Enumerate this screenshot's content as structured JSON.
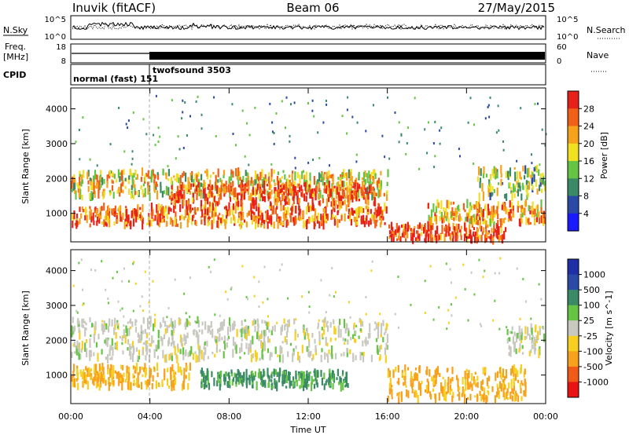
{
  "header": {
    "station": "Inuvik (fitACF)",
    "beam": "Beam 06",
    "date": "27/May/2015"
  },
  "panels": {
    "sky_label": "N.Sky",
    "sky_ticks": [
      "10^5",
      "10^0"
    ],
    "search_label": "N.Search",
    "search_ticks": [
      "10^5",
      "10^0"
    ],
    "freq_label": "Freq.",
    "freq_unit": "[MHz]",
    "freq_ticks": [
      "18",
      "8"
    ],
    "nave_label": "Nave",
    "nave_ticks": [
      "60",
      "0"
    ],
    "cpid_label": "CPID",
    "cpid_entries": [
      {
        "text": "normal (fast) 151",
        "start_hour": 0
      },
      {
        "text": "twofsound 3503",
        "start_hour": 4.0
      }
    ]
  },
  "colors": {
    "power_scale": [
      "#1a1aff",
      "#2a4aa8",
      "#3a8a66",
      "#66c444",
      "#f0e020",
      "#f6a21a",
      "#f26018",
      "#e8201a"
    ],
    "velocity_scale": [
      "#e81414",
      "#f25a18",
      "#f7a11c",
      "#f7d01f",
      "#c8c8c0",
      "#66c444",
      "#3a8a66",
      "#2a4aa8",
      "#1f2fa8"
    ]
  },
  "chart_data": [
    {
      "type": "heatmap",
      "title": "Power",
      "xlabel": "",
      "ylabel": "Slant Range [km]",
      "xlim": [
        0,
        24
      ],
      "ylim": [
        180,
        4600
      ],
      "x_ticks": [
        "00:00",
        "04:00",
        "08:00",
        "12:00",
        "16:00",
        "20:00",
        "00:00"
      ],
      "y_ticks": [
        1000,
        2000,
        3000,
        4000
      ],
      "colorbar": {
        "label": "Power [dB]",
        "ticks": [
          "4",
          "8",
          "12",
          "16",
          "20",
          "24",
          "28"
        ],
        "range": [
          0,
          30
        ]
      },
      "bands": [
        {
          "t": [
            0,
            16
          ],
          "r": [
            650,
            1200
          ],
          "value": 24
        },
        {
          "t": [
            0,
            16
          ],
          "r": [
            1450,
            2200
          ],
          "value": 18
        },
        {
          "t": [
            5,
            15.5
          ],
          "r": [
            1250,
            1850
          ],
          "value": 26
        },
        {
          "t": [
            16,
            22
          ],
          "r": [
            200,
            650
          ],
          "value": 26
        },
        {
          "t": [
            18,
            24
          ],
          "r": [
            700,
            1300
          ],
          "value": 21
        },
        {
          "t": [
            20.5,
            24
          ],
          "r": [
            1450,
            2300
          ],
          "value": 14
        }
      ]
    },
    {
      "type": "heatmap",
      "title": "Velocity",
      "xlabel": "Time UT",
      "ylabel": "Slant Range [km]",
      "xlim": [
        0,
        24
      ],
      "ylim": [
        180,
        4600
      ],
      "x_ticks": [
        "00:00",
        "04:00",
        "08:00",
        "12:00",
        "16:00",
        "20:00",
        "00:00"
      ],
      "y_ticks": [
        1000,
        2000,
        3000,
        4000
      ],
      "colorbar": {
        "label": "Velocity [m s^-1]",
        "ticks": [
          "-1000",
          "-500",
          "-100",
          "-25",
          "25",
          "100",
          "500",
          "1000"
        ]
      },
      "bands": [
        {
          "t": [
            0,
            16
          ],
          "r": [
            1450,
            2600
          ],
          "value": 0
        },
        {
          "t": [
            0,
            6
          ],
          "r": [
            650,
            1250
          ],
          "value": -120
        },
        {
          "t": [
            6.5,
            14
          ],
          "r": [
            650,
            1100
          ],
          "value": 150
        },
        {
          "t": [
            16,
            23
          ],
          "r": [
            300,
            1200
          ],
          "value": -150
        },
        {
          "t": [
            22,
            24
          ],
          "r": [
            1600,
            2400
          ],
          "value": 0
        }
      ]
    }
  ]
}
